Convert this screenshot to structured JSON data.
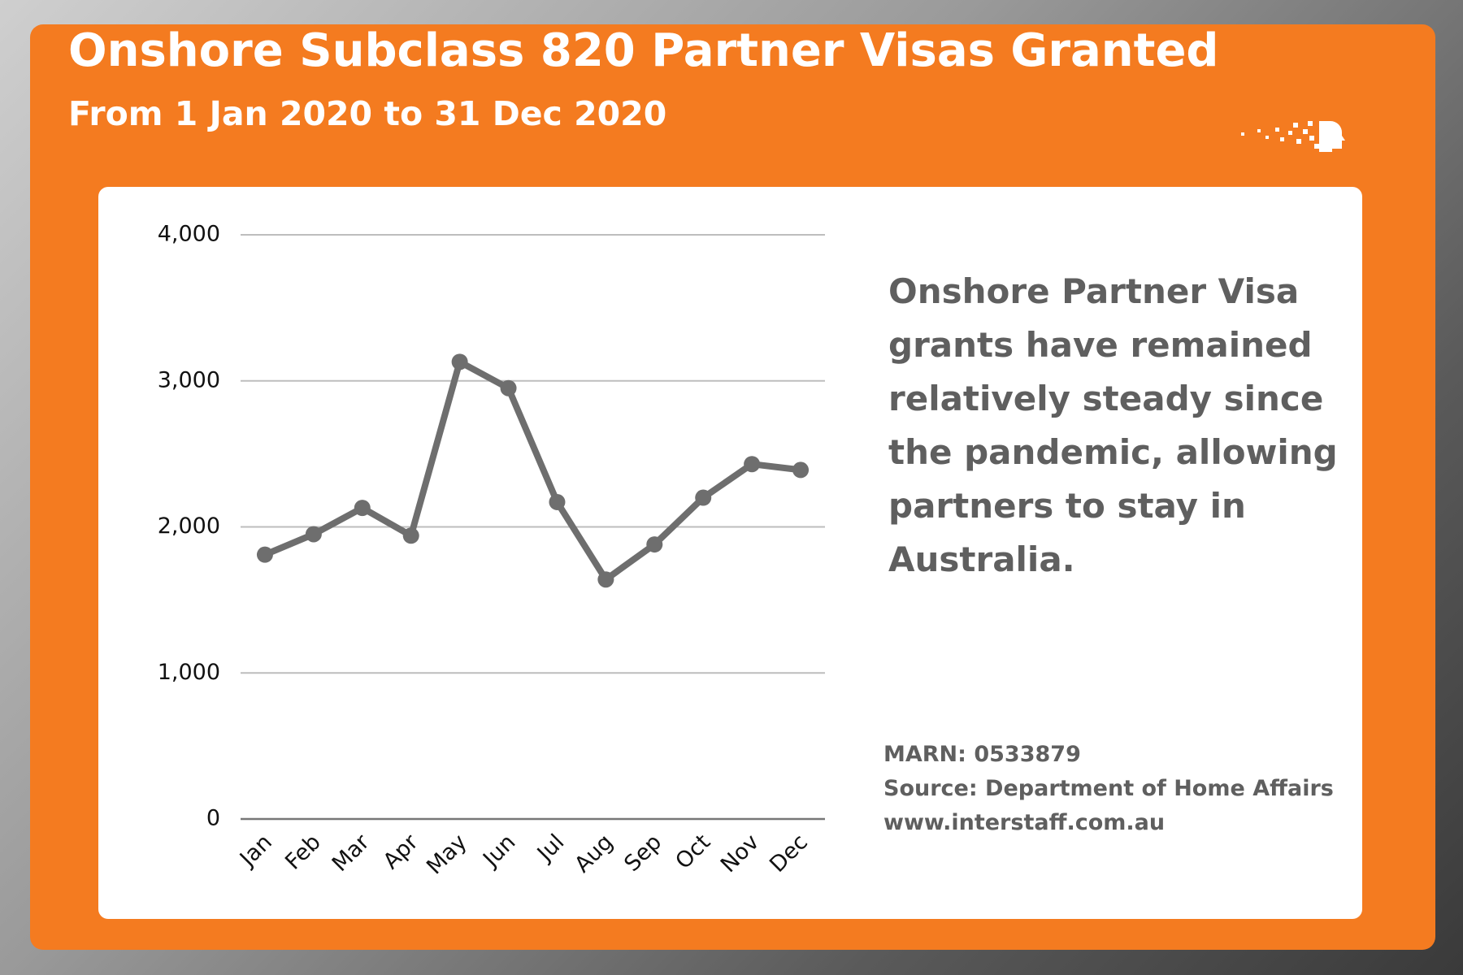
{
  "chart_data": {
    "type": "line",
    "title": "Onshore Subclass 820 Partner Visas Granted",
    "subtitle": "From 1 Jan 2020 to 31 Dec 2020",
    "categories": [
      "Jan",
      "Feb",
      "Mar",
      "Apr",
      "May",
      "Jun",
      "Jul",
      "Aug",
      "Sep",
      "Oct",
      "Nov",
      "Dec"
    ],
    "values": [
      1810,
      1950,
      2130,
      1940,
      3130,
      2950,
      2170,
      1640,
      1880,
      2200,
      2430,
      2390
    ],
    "color": "#6e6e6e",
    "ylim": [
      0,
      4000
    ],
    "yticks": [
      0,
      {
        "value": 1000,
        "label": "1,000"
      },
      {
        "value": 2000,
        "label": "2,000"
      },
      {
        "value": 3000,
        "label": "3,000"
      },
      {
        "value": 4000,
        "label": "4,000"
      }
    ],
    "grid": true,
    "annotation": "Onshore Partner Visa grants have remained relatively steady since the pandemic, allowing partners to stay in Australia.",
    "notes": [
      "MARN: 0533879",
      "Source: Department of Home Affairs",
      "www.interstaff.com.au"
    ]
  }
}
